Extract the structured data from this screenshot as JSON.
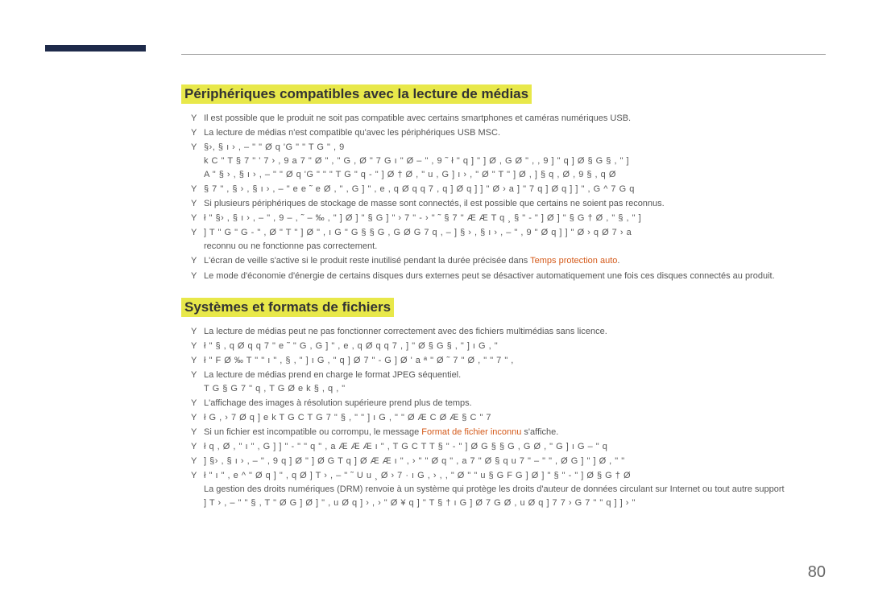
{
  "page": {
    "number": "80"
  },
  "section1": {
    "heading": "Périphériques compatibles avec la lecture de médias",
    "items": [
      {
        "text": "Il est possible que le produit ne soit pas compatible avec certains smartphones et caméras numériques USB."
      },
      {
        "text": "La lecture de médias n'est compatible qu'avec les périphériques USB MSC."
      },
      {
        "text_corrupt": "§›,  § ı › ,  –  \"     \"   Ø q  'G  \"   \"  T G   \"  ,  9",
        "sub_corrupt": [
          "k C \" T § 7 \"   ' 7 › ,  9 a  7 \" Ø \" ,   \"  G , Ø \"  7 G  ı  \" Ø    –  \"     ,  9  ˜ ł \"   q ]  \" ] Ø , G Ø \"  ,   ,  9  ] \"   q ] Ø  § G  § ,   \" ]",
          "A \"   § › ,  § ı › ,  –  \"     \"   Ø q  'G  \"   \"   \" T G   \"  q  - \" ] Ø  † Ø , \"  u , G ]   ı ›    , \" Ø \" T \" ] Ø    ,  ]  § q , Ø ,  9    § , q    Ø"
        ]
      },
      {
        "text_corrupt": "  § 7   \"  ,  § › ,  § ı › ,  –  \"   e e  ˜ e   Ø  , \"  , G ]   \"  ,  e , q Ø q  q 7 ,   q ] Ø   q ] ] \"  Ø › a    ]   \"  7   q ]  Ø  q ] ] \" , G  ^  7 G   q"
      },
      {
        "text": "Si plusieurs périphériques de stockage de masse sont connectés, il est possible que certains ne soient pas reconnus."
      },
      {
        "text_corrupt": "ł \"   §› ,  § ı › ,  –  \"  ,  9  –    , ˜ –  ‰ , \" ] Ø  ] \"  §    G ]   \"  › 7 \" - › \"  ˜  § 7    \"   Æ Æ  T   q     ¸   § \"  - \" ] Ø  ] \"  § G   † Ø , \"  § ,   \" ]"
      },
      {
        "text_corrupt": "  ]  T \"   G   \"   G - \" , Ø   \" T \" ] Ø   \"    ,  ı G    \"  G § § G , G  Ø  G 7 q ,   –    ]  § › ,  § ı › ,  –  \"  ,  9  \"  Ø   q ] ] \"   Ø ›  q    Ø  7  › a",
        "sub": "reconnu ou ne fonctionne pas correctement."
      },
      {
        "text": "L'écran de veille s'active si le produit reste inutilisé pendant la durée précisée dans ",
        "text_orange": "Temps protection auto",
        "text_after": "."
      },
      {
        "text": "Le mode d'économie d'énergie de certains disques durs externes peut se désactiver automatiquement une fois ces disques connectés au produit."
      }
    ]
  },
  "section2": {
    "heading": "Systèmes et formats de fichiers",
    "items": [
      {
        "text": "La lecture de médias peut ne pas fonctionner correctement avec des fichiers multimédias sans licence."
      },
      {
        "text_corrupt": "ł \"  § , q Ø q  q 7 \"    e  ˜  \"    G   , G ]    \"  ,  e , q Ø q  q 7 ,  ]  \"  Ø  § G   § ,    \"  ]   ı G , \""
      },
      {
        "text_corrupt": "ł \"   F   Ø ‰ T \"   \"   ı  \"  ,  § ,   \"  ]   ı G ,  \"   q ] Ø  7 \"     - G ] Ø  '    a    ª  \" Ø     ˜ 7 \"  Ø  , \"   \"  7 \" ,"
      },
      {
        "text": "La lecture de médias prend en charge le format JPEG séquentiel.",
        "sub_corrupt": "T G    § G   7 \"   q , T G Ø   e k   § , q  , \""
      },
      {
        "text": "L'affichage des images à résolution supérieure prend plus de temps."
      },
      {
        "text_corrupt": "ł G   , › 7  Ø  q ]    e k   T G C  T G 7 \"  § ,   \"  \" ]   ı G ,  \"  \"  Ø     Æ  C  Ø   Æ  §  C \" 7"
      },
      {
        "text": "Si un fichier est incompatible ou corrompu, le message ",
        "text_orange": "Format de fichier inconnu",
        "text_after": " s'affiche."
      },
      {
        "text_corrupt": "ł q ,    Ø ,   \"   ı  \"  ,   G ]   ] \"  -  \"    \"   q   \" , a   Æ Æ Æ   ı  \"  ,  T G C  T  T  § \"  - \" ] Ø  G § § G , G Ø ,  \"   G ]   ı G –   \"   q"
      },
      {
        "text_corrupt": " ]  §› ,  § ı › ,  –  \"  ,  9   q ] Ø  \" ] Ø  G  T q ]   Ø  Æ Æ   ı  \"  ,  › \"    \"  Ø  q    \" , a  7  \"  Ø  § q   u 7 \"  –  \"    \" , Ø G   ]    \" ] Ø , \"  \""
      },
      {
        "text_corrupt": "ł \"    ı  \"  ,   e  ^  \"  Ø  q ]  \"    , q  Ø  ]  T › ,  –  \"   ˜ U u  ¸   Ø › 7 ·  ı G , › ,  ,  \"   Ø \"   \" u  § G F G ] Ø  ] \"  § \"  - \" ] Ø  § G   † Ø",
        "sub": "La gestion des droits numériques (DRM) renvoie à un système qui protège les droits d'auteur de données circulant sur Internet ou tout autre support",
        "sub_corrupt2": "]  T › ,  –  \"   \"  § , T \" Ø G ] Ø  ] \"    ,  u  Ø  q ]  ›  ,  ›  \"  Ø ¥ q   ]  \" T § †   ı G ] Ø  7 G    Ø ,  u  Ø  q ]   7 7 ›  G 7 \"   \"   q ] ] › \""
      }
    ]
  },
  "colors": {
    "highlight_bg": "#e8e84a",
    "orange": "#d45a1a",
    "top_bar": "#1e2a4a",
    "text": "#555555",
    "page_num": "#666666"
  }
}
